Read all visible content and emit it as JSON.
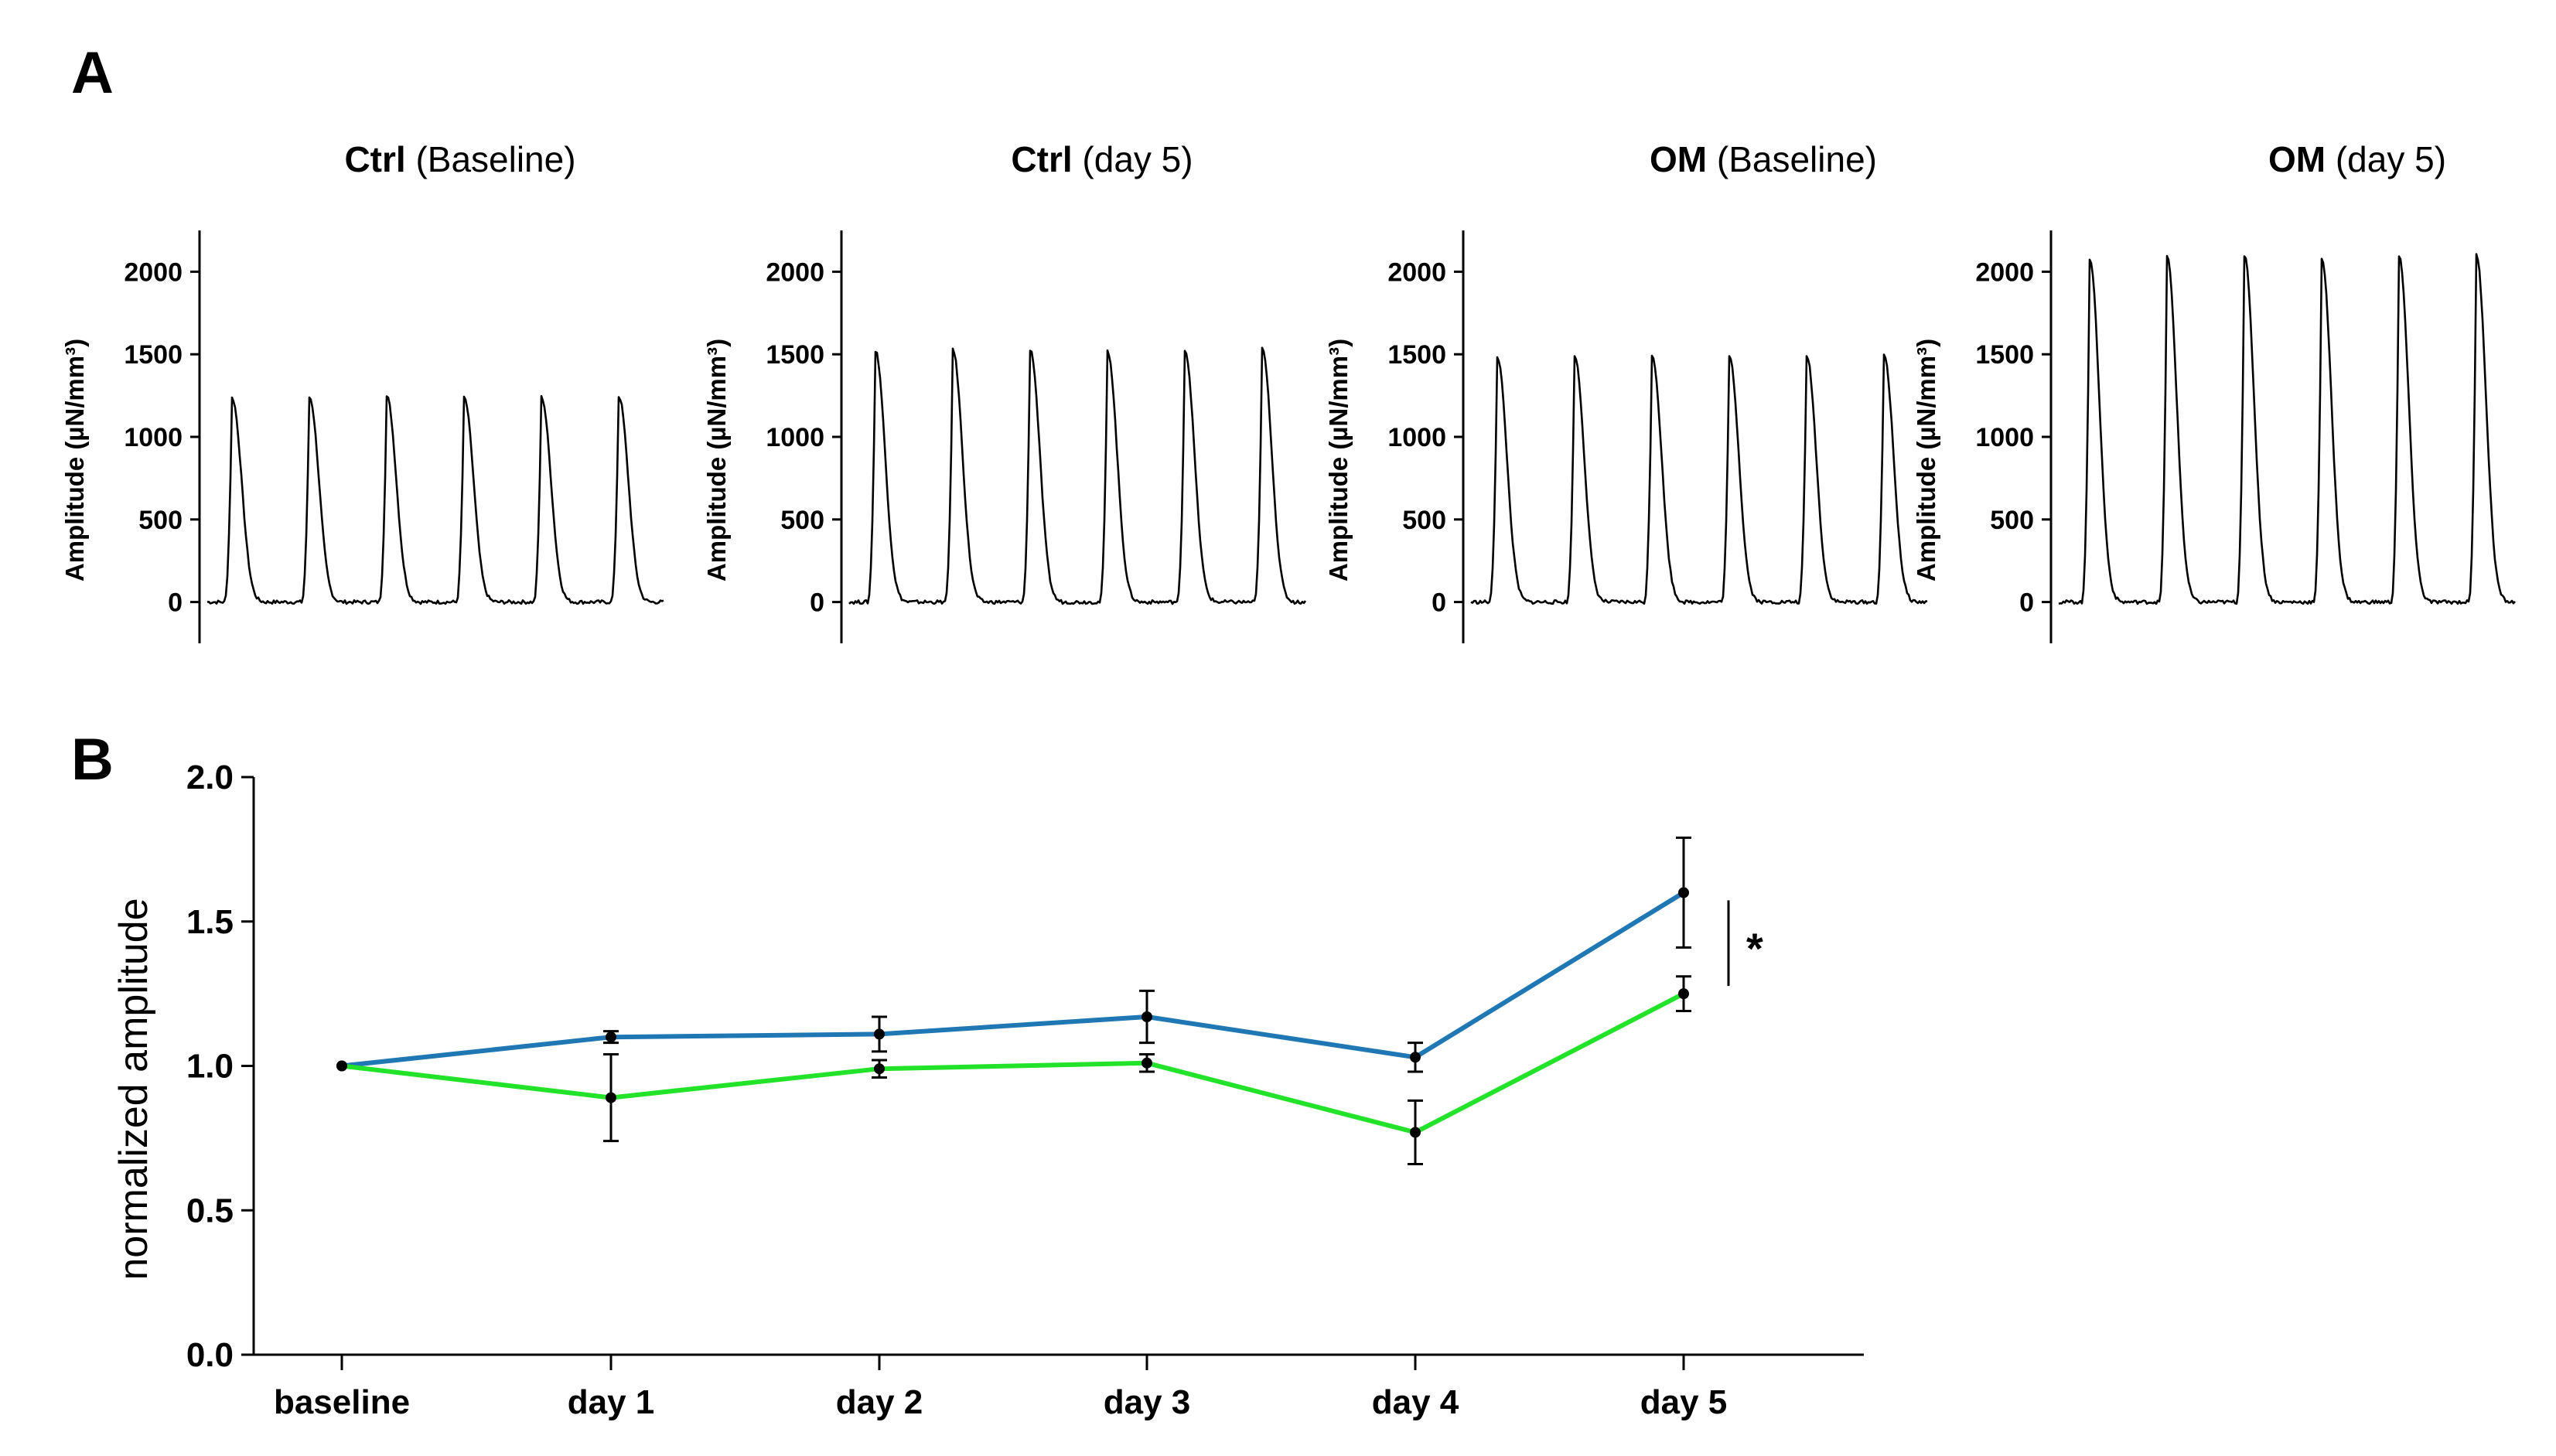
{
  "panels": {
    "a_label": "A",
    "b_label": "B"
  },
  "panel_a": [
    {
      "title_bold": "Ctrl",
      "title_rest": " (Baseline)",
      "peak": 1240,
      "ylabel": "Amplitude (µN/mm³)"
    },
    {
      "title_bold": "Ctrl",
      "title_rest": " (day 5)",
      "peak": 1525,
      "ylabel": "Amplitude (µN/mm³)"
    },
    {
      "title_bold": "OM",
      "title_rest": " (Baseline)",
      "peak": 1490,
      "ylabel": "Amplitude (µN/mm³)"
    },
    {
      "title_bold": "OM",
      "title_rest": " (day 5)",
      "peak": 2090,
      "ylabel": "Amplitude (µN/mm³)"
    }
  ],
  "chart_data": [
    {
      "type": "line",
      "title": "",
      "ylabel": "Amplitude (µN/mm³)",
      "yticks": [
        "0",
        "500",
        "1000",
        "1500",
        "2000"
      ],
      "ylim": [
        -250,
        2250
      ],
      "note": "force traces, 6 twitches each; peak amplitudes per panel given in panel_a"
    },
    {
      "type": "line",
      "title": "",
      "xlabel": "",
      "ylabel": "normalized amplitude",
      "categories": [
        "baseline",
        "day 1",
        "day 2",
        "day 3",
        "day 4",
        "day 5"
      ],
      "yticks": [
        "0.0",
        "0.5",
        "1.0",
        "1.5",
        "2.0"
      ],
      "ylim": [
        0,
        2
      ],
      "series": [
        {
          "color": "#1f77b4",
          "values": [
            1.0,
            1.1,
            1.11,
            1.17,
            1.03,
            1.6
          ],
          "errors": [
            0.0,
            0.02,
            0.06,
            0.09,
            0.05,
            0.19
          ]
        },
        {
          "color": "#22e32a",
          "values": [
            1.0,
            0.89,
            0.99,
            1.01,
            0.77,
            1.25
          ],
          "errors": [
            0.0,
            0.15,
            0.03,
            0.03,
            0.11,
            0.06
          ]
        }
      ],
      "significance": "*",
      "grid": false,
      "legend": "none"
    }
  ]
}
